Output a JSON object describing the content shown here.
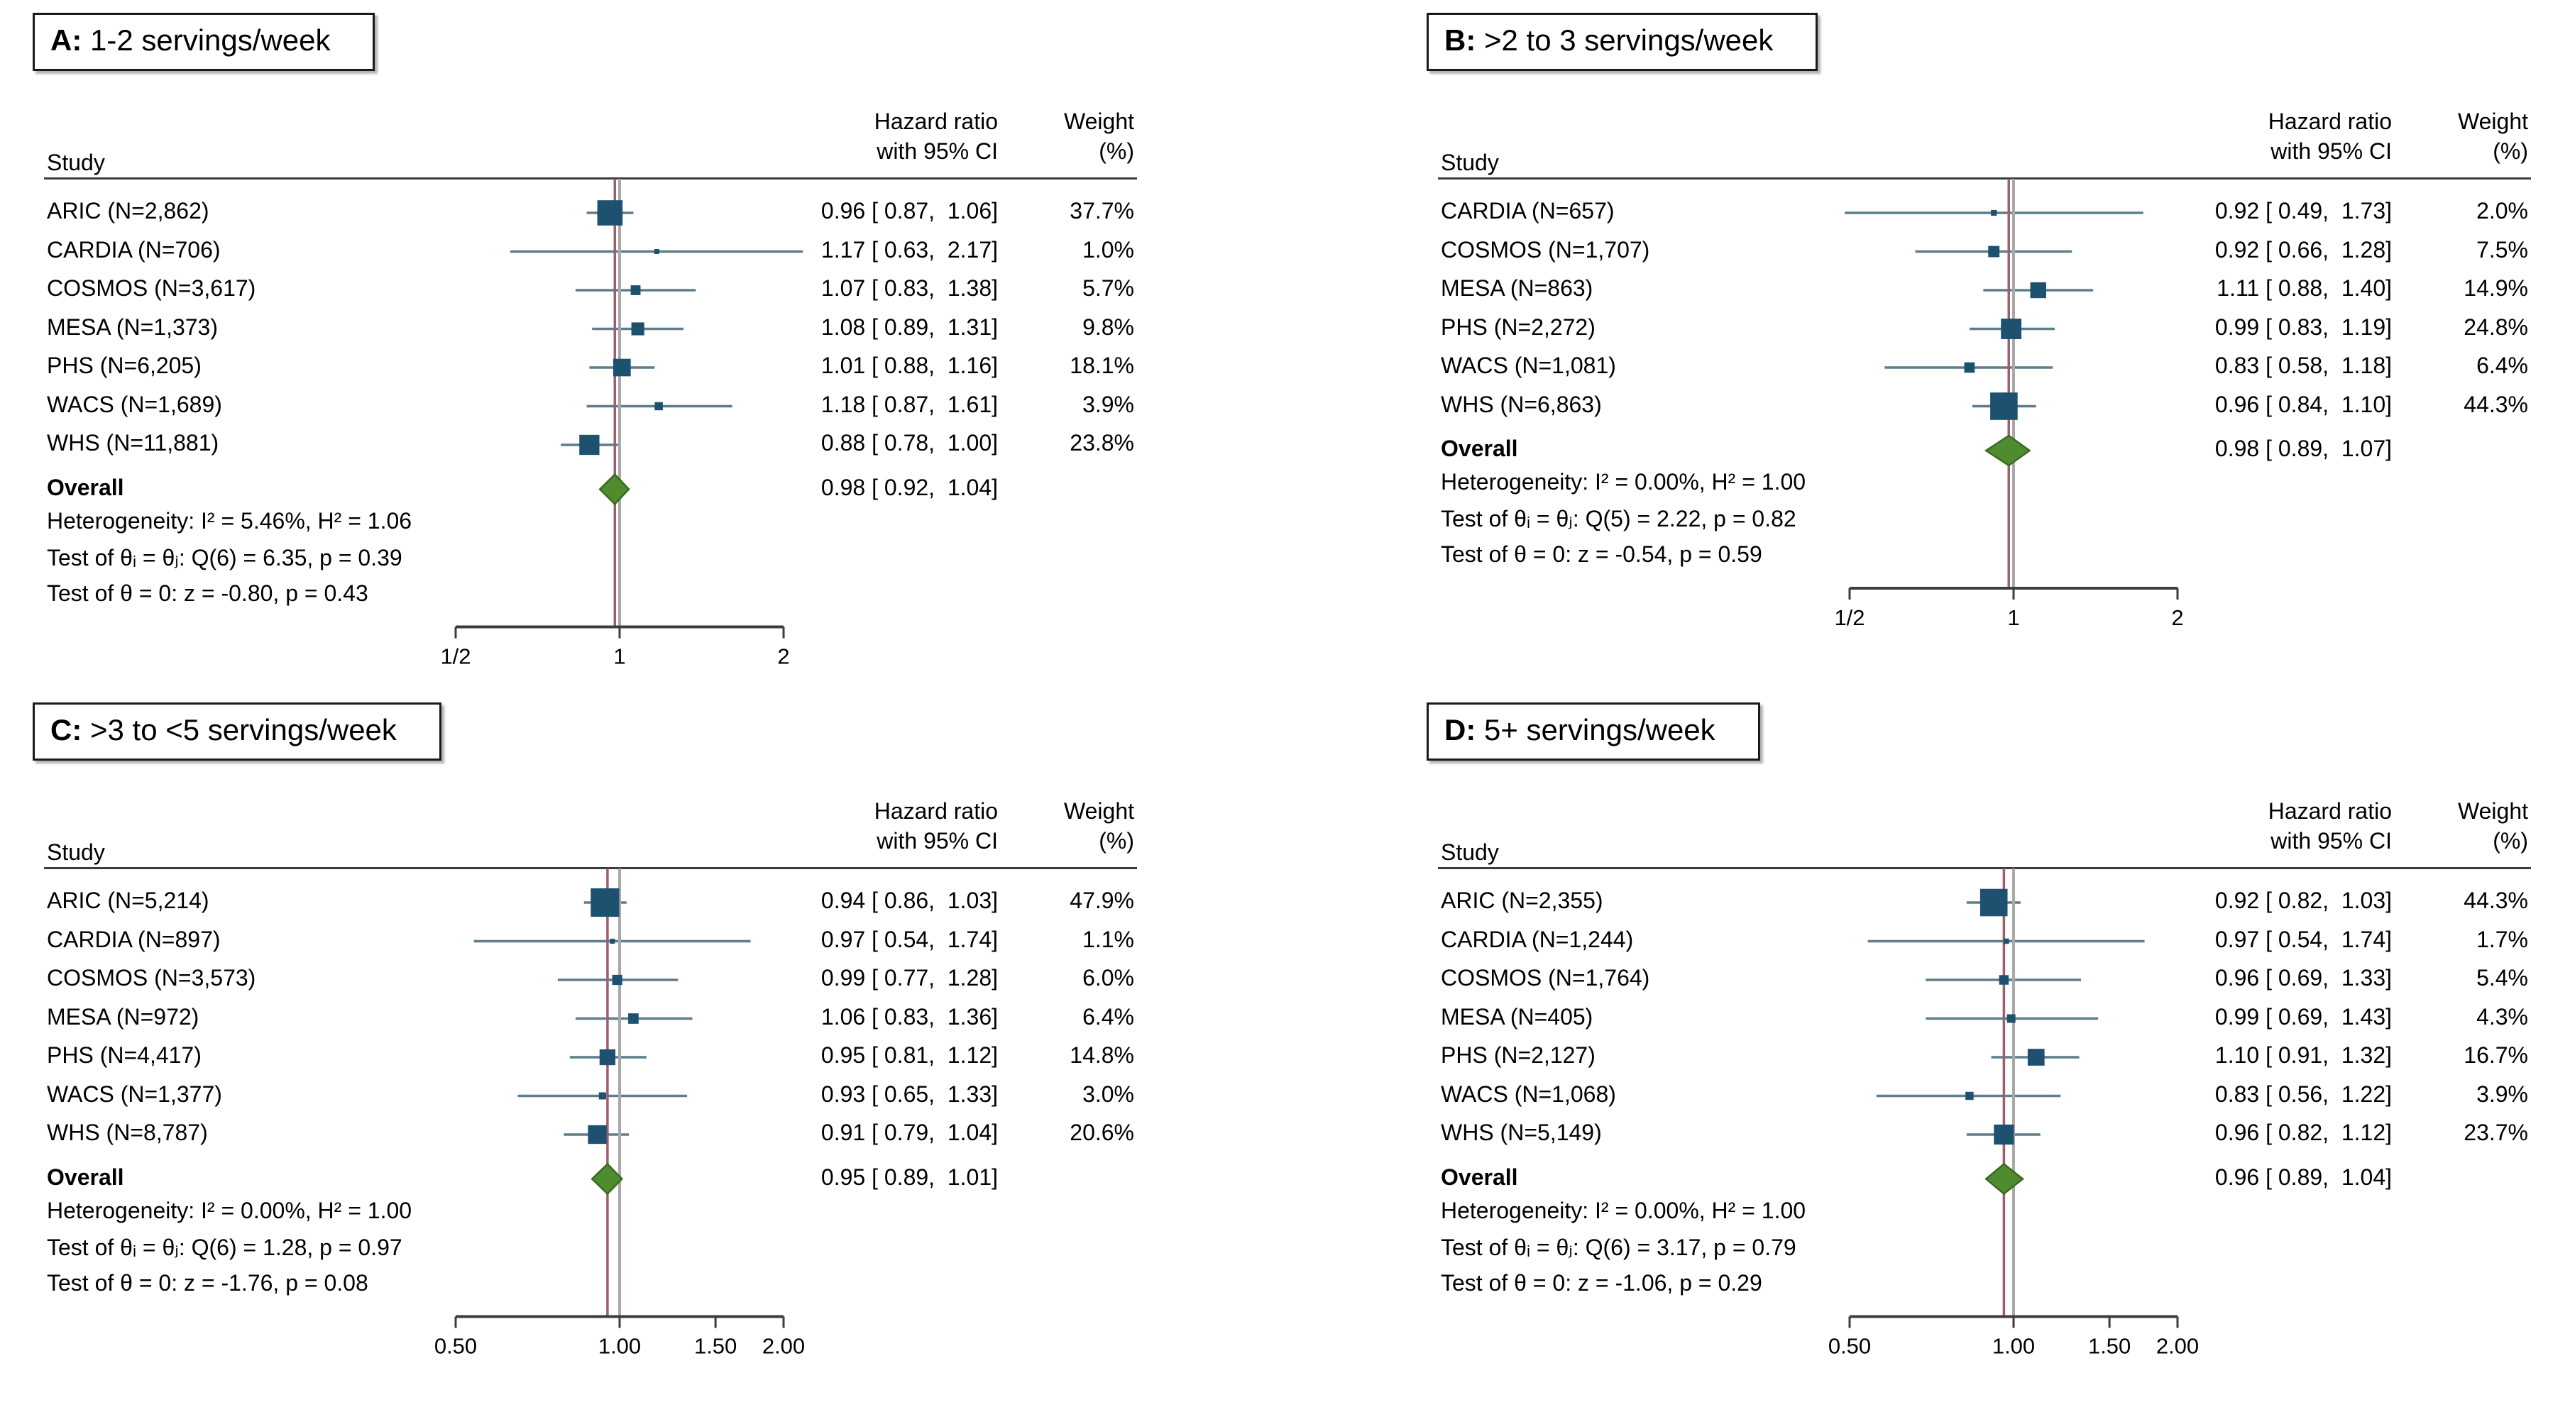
{
  "colors": {
    "marker_navy": "#1d516f",
    "ci_line": "#5f7d8c",
    "overall_diamond_fill": "#4e8c2e",
    "overall_diamond_border": "#3a6a21",
    "overall_ref_line": "#9e5e6a",
    "null_line": "#a9a9a9",
    "axis": "#3c3c3c",
    "text": "#000000"
  },
  "chart_data": [
    {
      "panel": "A",
      "type": "scatter",
      "title_tag": "A:",
      "title": "1-2 servings/week",
      "col_study": "Study",
      "col_hr_1": "Hazard ratio",
      "col_hr_2": "with 95% CI",
      "col_wt_1": "Weight",
      "col_wt_2": "(%)",
      "x_scale": "log",
      "xlim": [
        0.5,
        2
      ],
      "null_line": 1,
      "x_ticks": [
        {
          "v": 0.5,
          "label": "1/2"
        },
        {
          "v": 1,
          "label": "1"
        },
        {
          "v": 2,
          "label": "2"
        }
      ],
      "studies": [
        {
          "name": "ARIC (N=2,862)",
          "hr": 0.96,
          "lo": 0.87,
          "hi": 1.06,
          "ci_text": "0.96 [ 0.87,  1.06]",
          "weight": 37.7,
          "weight_text": "37.7%"
        },
        {
          "name": "CARDIA (N=706)",
          "hr": 1.17,
          "lo": 0.63,
          "hi": 2.17,
          "ci_text": "1.17 [ 0.63,  2.17]",
          "weight": 1.0,
          "weight_text": "1.0%"
        },
        {
          "name": "COSMOS (N=3,617)",
          "hr": 1.07,
          "lo": 0.83,
          "hi": 1.38,
          "ci_text": "1.07 [ 0.83,  1.38]",
          "weight": 5.7,
          "weight_text": "5.7%"
        },
        {
          "name": "MESA (N=1,373)",
          "hr": 1.08,
          "lo": 0.89,
          "hi": 1.31,
          "ci_text": "1.08 [ 0.89,  1.31]",
          "weight": 9.8,
          "weight_text": "9.8%"
        },
        {
          "name": "PHS (N=6,205)",
          "hr": 1.01,
          "lo": 0.88,
          "hi": 1.16,
          "ci_text": "1.01 [ 0.88,  1.16]",
          "weight": 18.1,
          "weight_text": "18.1%"
        },
        {
          "name": "WACS (N=1,689)",
          "hr": 1.18,
          "lo": 0.87,
          "hi": 1.61,
          "ci_text": "1.18 [ 0.87,  1.61]",
          "weight": 3.9,
          "weight_text": "3.9%"
        },
        {
          "name": "WHS (N=11,881)",
          "hr": 0.88,
          "lo": 0.78,
          "hi": 1.0,
          "ci_text": "0.88 [ 0.78,  1.00]",
          "weight": 23.8,
          "weight_text": "23.8%"
        }
      ],
      "overall": {
        "label": "Overall",
        "hr": 0.98,
        "lo": 0.92,
        "hi": 1.04,
        "ci_text": "0.98 [ 0.92,  1.04]"
      },
      "stats": [
        "Heterogeneity: I² = 5.46%, H² = 1.06",
        "Test of θᵢ = θⱼ: Q(6) = 6.35, p = 0.39",
        "Test of θ = 0: z = -0.80, p = 0.43"
      ]
    },
    {
      "panel": "B",
      "type": "scatter",
      "title_tag": "B:",
      "title": ">2 to 3 servings/week",
      "col_study": "Study",
      "col_hr_1": "Hazard ratio",
      "col_hr_2": "with 95% CI",
      "col_wt_1": "Weight",
      "col_wt_2": "(%)",
      "x_scale": "log",
      "xlim": [
        0.5,
        2
      ],
      "null_line": 1,
      "x_ticks": [
        {
          "v": 0.5,
          "label": "1/2"
        },
        {
          "v": 1,
          "label": "1"
        },
        {
          "v": 2,
          "label": "2"
        }
      ],
      "studies": [
        {
          "name": "CARDIA (N=657)",
          "hr": 0.92,
          "lo": 0.49,
          "hi": 1.73,
          "ci_text": "0.92 [ 0.49,  1.73]",
          "weight": 2.0,
          "weight_text": "2.0%"
        },
        {
          "name": "COSMOS (N=1,707)",
          "hr": 0.92,
          "lo": 0.66,
          "hi": 1.28,
          "ci_text": "0.92 [ 0.66,  1.28]",
          "weight": 7.5,
          "weight_text": "7.5%"
        },
        {
          "name": "MESA (N=863)",
          "hr": 1.11,
          "lo": 0.88,
          "hi": 1.4,
          "ci_text": "1.11 [ 0.88,  1.40]",
          "weight": 14.9,
          "weight_text": "14.9%"
        },
        {
          "name": "PHS (N=2,272)",
          "hr": 0.99,
          "lo": 0.83,
          "hi": 1.19,
          "ci_text": "0.99 [ 0.83,  1.19]",
          "weight": 24.8,
          "weight_text": "24.8%"
        },
        {
          "name": "WACS (N=1,081)",
          "hr": 0.83,
          "lo": 0.58,
          "hi": 1.18,
          "ci_text": "0.83 [ 0.58,  1.18]",
          "weight": 6.4,
          "weight_text": "6.4%"
        },
        {
          "name": "WHS (N=6,863)",
          "hr": 0.96,
          "lo": 0.84,
          "hi": 1.1,
          "ci_text": "0.96 [ 0.84,  1.10]",
          "weight": 44.3,
          "weight_text": "44.3%"
        }
      ],
      "overall": {
        "label": "Overall",
        "hr": 0.98,
        "lo": 0.89,
        "hi": 1.07,
        "ci_text": "0.98 [ 0.89,  1.07]"
      },
      "stats": [
        "Heterogeneity: I² = 0.00%, H² = 1.00",
        "Test of θᵢ = θⱼ: Q(5) = 2.22, p = 0.82",
        "Test of θ = 0: z = -0.54, p = 0.59"
      ]
    },
    {
      "panel": "C",
      "type": "scatter",
      "title_tag": "C:",
      "title": ">3 to <5 servings/week",
      "col_study": "Study",
      "col_hr_1": "Hazard ratio",
      "col_hr_2": "with 95% CI",
      "col_wt_1": "Weight",
      "col_wt_2": "(%)",
      "x_scale": "log",
      "xlim": [
        0.5,
        2
      ],
      "null_line": 1,
      "x_ticks": [
        {
          "v": 0.5,
          "label": "0.50"
        },
        {
          "v": 1,
          "label": "1.00"
        },
        {
          "v": 1.5,
          "label": "1.50"
        },
        {
          "v": 2,
          "label": "2.00"
        }
      ],
      "studies": [
        {
          "name": "ARIC (N=5,214)",
          "hr": 0.94,
          "lo": 0.86,
          "hi": 1.03,
          "ci_text": "0.94 [ 0.86,  1.03]",
          "weight": 47.9,
          "weight_text": "47.9%"
        },
        {
          "name": "CARDIA (N=897)",
          "hr": 0.97,
          "lo": 0.54,
          "hi": 1.74,
          "ci_text": "0.97 [ 0.54,  1.74]",
          "weight": 1.1,
          "weight_text": "1.1%"
        },
        {
          "name": "COSMOS (N=3,573)",
          "hr": 0.99,
          "lo": 0.77,
          "hi": 1.28,
          "ci_text": "0.99 [ 0.77,  1.28]",
          "weight": 6.0,
          "weight_text": "6.0%"
        },
        {
          "name": "MESA (N=972)",
          "hr": 1.06,
          "lo": 0.83,
          "hi": 1.36,
          "ci_text": "1.06 [ 0.83,  1.36]",
          "weight": 6.4,
          "weight_text": "6.4%"
        },
        {
          "name": "PHS (N=4,417)",
          "hr": 0.95,
          "lo": 0.81,
          "hi": 1.12,
          "ci_text": "0.95 [ 0.81,  1.12]",
          "weight": 14.8,
          "weight_text": "14.8%"
        },
        {
          "name": "WACS (N=1,377)",
          "hr": 0.93,
          "lo": 0.65,
          "hi": 1.33,
          "ci_text": "0.93 [ 0.65,  1.33]",
          "weight": 3.0,
          "weight_text": "3.0%"
        },
        {
          "name": "WHS (N=8,787)",
          "hr": 0.91,
          "lo": 0.79,
          "hi": 1.04,
          "ci_text": "0.91 [ 0.79,  1.04]",
          "weight": 20.6,
          "weight_text": "20.6%"
        }
      ],
      "overall": {
        "label": "Overall",
        "hr": 0.95,
        "lo": 0.89,
        "hi": 1.01,
        "ci_text": "0.95 [ 0.89,  1.01]"
      },
      "stats": [
        "Heterogeneity: I² = 0.00%, H² = 1.00",
        "Test of θᵢ = θⱼ: Q(6) = 1.28, p = 0.97",
        "Test of θ = 0: z = -1.76, p = 0.08"
      ]
    },
    {
      "panel": "D",
      "type": "scatter",
      "title_tag": "D:",
      "title": "5+ servings/week",
      "col_study": "Study",
      "col_hr_1": "Hazard ratio",
      "col_hr_2": "with 95% CI",
      "col_wt_1": "Weight",
      "col_wt_2": "(%)",
      "x_scale": "log",
      "xlim": [
        0.5,
        2
      ],
      "null_line": 1,
      "x_ticks": [
        {
          "v": 0.5,
          "label": "0.50"
        },
        {
          "v": 1,
          "label": "1.00"
        },
        {
          "v": 1.5,
          "label": "1.50"
        },
        {
          "v": 2,
          "label": "2.00"
        }
      ],
      "studies": [
        {
          "name": "ARIC (N=2,355)",
          "hr": 0.92,
          "lo": 0.82,
          "hi": 1.03,
          "ci_text": "0.92 [ 0.82,  1.03]",
          "weight": 44.3,
          "weight_text": "44.3%"
        },
        {
          "name": "CARDIA (N=1,244)",
          "hr": 0.97,
          "lo": 0.54,
          "hi": 1.74,
          "ci_text": "0.97 [ 0.54,  1.74]",
          "weight": 1.7,
          "weight_text": "1.7%"
        },
        {
          "name": "COSMOS (N=1,764)",
          "hr": 0.96,
          "lo": 0.69,
          "hi": 1.33,
          "ci_text": "0.96 [ 0.69,  1.33]",
          "weight": 5.4,
          "weight_text": "5.4%"
        },
        {
          "name": "MESA (N=405)",
          "hr": 0.99,
          "lo": 0.69,
          "hi": 1.43,
          "ci_text": "0.99 [ 0.69,  1.43]",
          "weight": 4.3,
          "weight_text": "4.3%"
        },
        {
          "name": "PHS (N=2,127)",
          "hr": 1.1,
          "lo": 0.91,
          "hi": 1.32,
          "ci_text": "1.10 [ 0.91,  1.32]",
          "weight": 16.7,
          "weight_text": "16.7%"
        },
        {
          "name": "WACS (N=1,068)",
          "hr": 0.83,
          "lo": 0.56,
          "hi": 1.22,
          "ci_text": "0.83 [ 0.56,  1.22]",
          "weight": 3.9,
          "weight_text": "3.9%"
        },
        {
          "name": "WHS (N=5,149)",
          "hr": 0.96,
          "lo": 0.82,
          "hi": 1.12,
          "ci_text": "0.96 [ 0.82,  1.12]",
          "weight": 23.7,
          "weight_text": "23.7%"
        }
      ],
      "overall": {
        "label": "Overall",
        "hr": 0.96,
        "lo": 0.89,
        "hi": 1.04,
        "ci_text": "0.96 [ 0.89,  1.04]"
      },
      "stats": [
        "Heterogeneity: I² = 0.00%, H² = 1.00",
        "Test of θᵢ = θⱼ: Q(6) = 3.17, p = 0.79",
        "Test of θ = 0: z = -1.06, p = 0.29"
      ]
    }
  ]
}
